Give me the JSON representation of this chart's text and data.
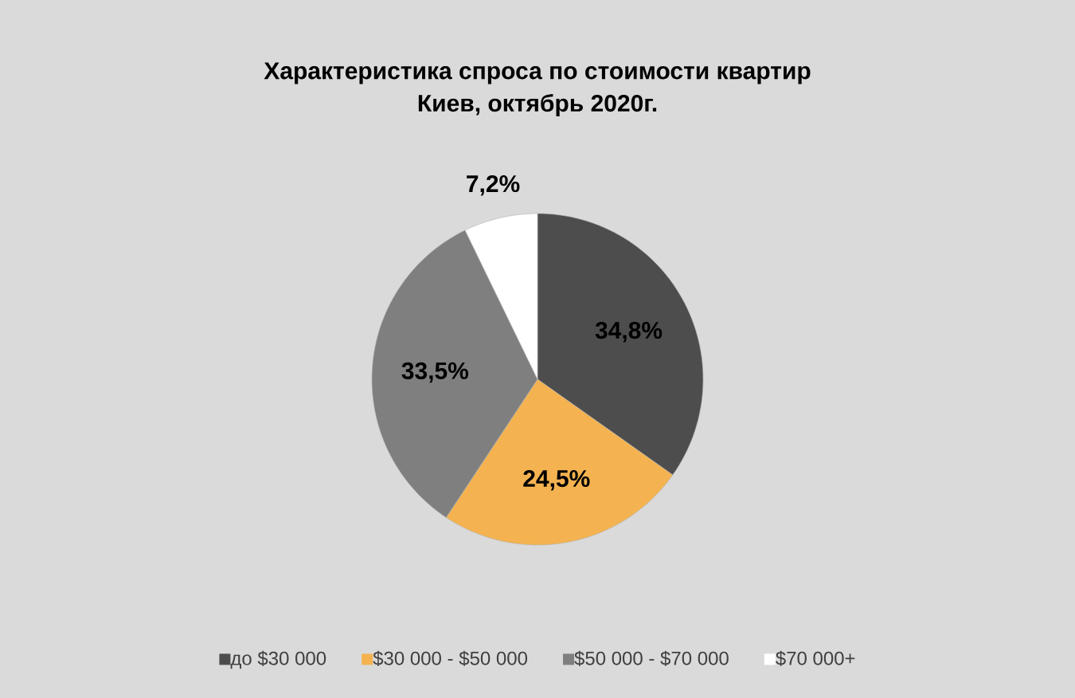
{
  "chart_data": {
    "type": "pie",
    "title": "Характеристика спроса по стоимости квартир",
    "subtitle": "Киев, октябрь 2020г.",
    "categories": [
      "до $30 000",
      "$30 000 - $50 000",
      "$50 000 - $70 000",
      "$70 000+"
    ],
    "values": [
      34.8,
      24.5,
      33.5,
      7.2
    ],
    "value_labels": [
      "34,8%",
      "24,5%",
      "33,5%",
      "7,2%"
    ],
    "colors": [
      "#4d4d4d",
      "#f4b350",
      "#7f7f7f",
      "#ffffff"
    ],
    "legend": "bottom"
  }
}
